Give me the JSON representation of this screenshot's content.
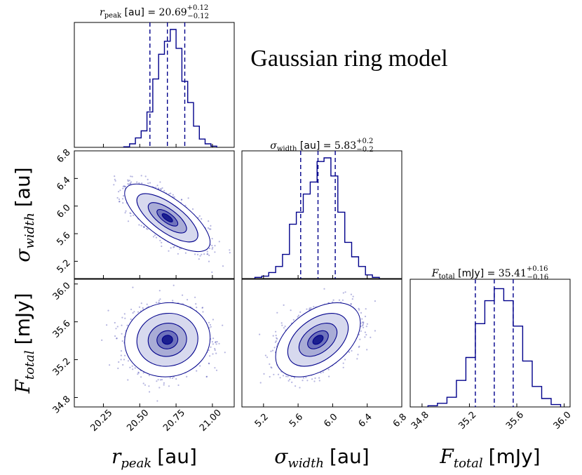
{
  "chart_data": {
    "type": "corner",
    "title": "Gaussian ring model",
    "parameters": [
      {
        "key": "r_peak",
        "symbol": "r",
        "subscript": "peak",
        "unit": "[au]",
        "median": 20.69,
        "err_plus": 0.12,
        "err_minus": 0.12,
        "range": [
          20.05,
          21.15
        ],
        "ticks": [
          "20.25",
          "20.50",
          "20.75",
          "21.00"
        ],
        "tick_values": [
          20.25,
          20.5,
          20.75,
          21.0
        ],
        "quantiles": [
          20.57,
          20.69,
          20.81
        ],
        "title_text": "= 20.69",
        "label_text": "[au]"
      },
      {
        "key": "sigma_width",
        "symbol": "σ",
        "subscript": "width",
        "unit": "[au]",
        "median": 5.83,
        "err_plus": 0.2,
        "err_minus": 0.2,
        "range": [
          4.95,
          6.8
        ],
        "ticks": [
          "5.2",
          "5.6",
          "6.0",
          "6.4",
          "6.8"
        ],
        "tick_values": [
          5.2,
          5.6,
          6.0,
          6.4,
          6.8
        ],
        "quantiles": [
          5.63,
          5.83,
          6.03
        ],
        "title_text": "= 5.83",
        "label_text": "[au]"
      },
      {
        "key": "F_total",
        "symbol": "F",
        "subscript": "total",
        "unit": "[mJy]",
        "median": 35.41,
        "err_plus": 0.16,
        "err_minus": 0.16,
        "range": [
          34.7,
          36.05
        ],
        "ticks": [
          "34.8",
          "35.2",
          "35.6",
          "36.0"
        ],
        "tick_values": [
          34.8,
          35.2,
          35.6,
          36.0
        ],
        "quantiles": [
          35.25,
          35.41,
          35.57
        ],
        "title_text": "= 35.41",
        "label_text": "[mJy]"
      }
    ],
    "histograms": [
      {
        "param": "r_peak",
        "bins": [
          20.39,
          20.43,
          20.47,
          20.51,
          20.55,
          20.59,
          20.63,
          20.67,
          20.71,
          20.75,
          20.79,
          20.83,
          20.87,
          20.91,
          20.95,
          20.99,
          21.03
        ],
        "counts": [
          0.005,
          0.03,
          0.08,
          0.14,
          0.3,
          0.58,
          0.79,
          0.9,
          1.0,
          0.84,
          0.56,
          0.38,
          0.18,
          0.07,
          0.03,
          0.01
        ]
      },
      {
        "param": "sigma_width",
        "bins": [
          5.1,
          5.18,
          5.26,
          5.34,
          5.42,
          5.5,
          5.58,
          5.66,
          5.74,
          5.82,
          5.9,
          5.98,
          6.06,
          6.14,
          6.22,
          6.3,
          6.38,
          6.46,
          6.54
        ],
        "counts": [
          0.01,
          0.02,
          0.05,
          0.1,
          0.2,
          0.45,
          0.55,
          0.7,
          0.8,
          0.97,
          1.0,
          0.85,
          0.55,
          0.3,
          0.18,
          0.1,
          0.03,
          0.01
        ]
      },
      {
        "param": "F_total",
        "bins": [
          34.85,
          34.93,
          35.01,
          35.09,
          35.17,
          35.25,
          35.33,
          35.41,
          35.49,
          35.57,
          35.65,
          35.73,
          35.81,
          35.89,
          35.97
        ],
        "counts": [
          0.01,
          0.03,
          0.08,
          0.22,
          0.41,
          0.69,
          0.88,
          0.98,
          0.88,
          0.67,
          0.38,
          0.17,
          0.07,
          0.02
        ]
      }
    ],
    "density_2d": [
      {
        "x": "r_peak",
        "y": "sigma_width",
        "correlation": -0.72
      },
      {
        "x": "r_peak",
        "y": "F_total",
        "correlation": 0.05
      },
      {
        "x": "sigma_width",
        "y": "F_total",
        "correlation": 0.45
      }
    ],
    "colors": {
      "hist": "#00008b",
      "points": "#2a2aa6",
      "contour": "#00008b"
    }
  }
}
